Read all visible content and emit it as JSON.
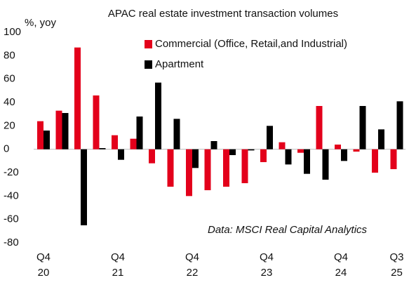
{
  "chart_data": {
    "type": "bar",
    "title": "APAC real estate investment transaction volumes",
    "y_label": "%, yoy",
    "annotation": "Data: MSCI Real Capital Analytics",
    "categories": [
      "Q4 20",
      null,
      null,
      null,
      "Q4 21",
      null,
      null,
      null,
      "Q4 22",
      null,
      null,
      null,
      "Q4 23",
      null,
      null,
      null,
      "Q4 24",
      null,
      null,
      "Q3 25"
    ],
    "series": [
      {
        "name": "Commercial (Office, Retail,and Industrial)",
        "color": "#e3001b",
        "values": [
          24,
          33,
          87,
          46,
          12,
          9,
          -12,
          -32,
          -40,
          -35,
          -32,
          -29,
          -11,
          6,
          -3,
          37,
          4,
          -2,
          -20,
          -17
        ]
      },
      {
        "name": "Apartment",
        "color": "#000000",
        "values": [
          16,
          31,
          -65,
          1,
          -9,
          28,
          57,
          26,
          -16,
          7,
          -5,
          -1,
          20,
          -13,
          -21,
          -26,
          -10,
          37,
          17,
          41
        ]
      }
    ],
    "ylim": [
      -80,
      100
    ],
    "yticks": [
      -80,
      -60,
      -40,
      -20,
      0,
      20,
      40,
      60,
      80,
      100
    ],
    "legend": "top-right"
  }
}
